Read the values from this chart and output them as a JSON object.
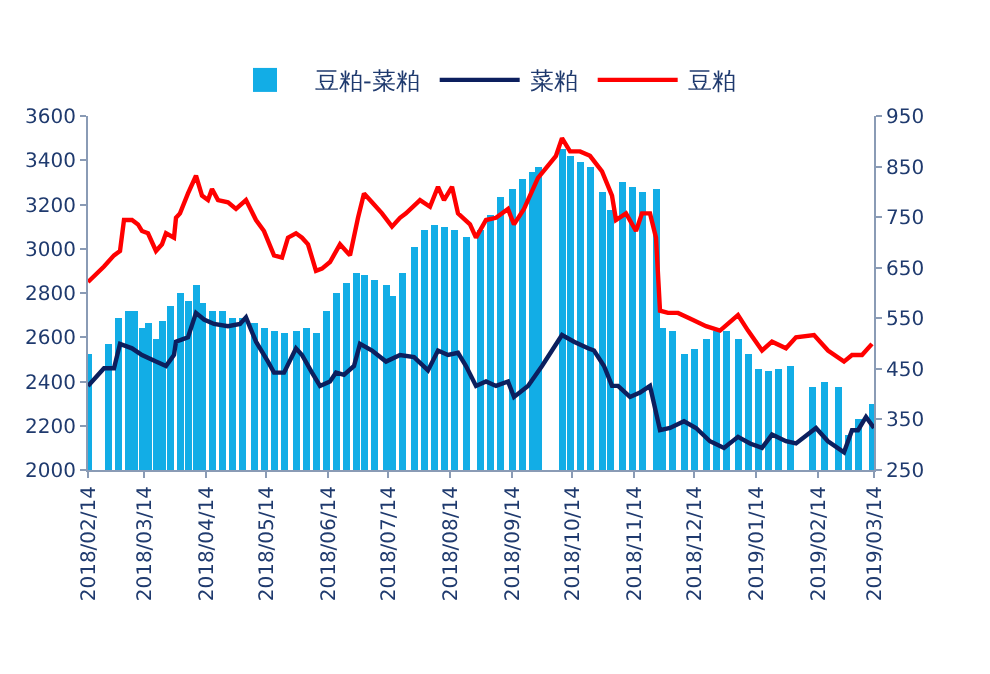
{
  "chart_data": {
    "type": "line",
    "legend": "top",
    "grid": false,
    "marker": "none",
    "line_style": "solid",
    "xlim": [
      "2018-02-14",
      "2019-03-14"
    ],
    "xticks": [
      {
        "value": "2018-02-14",
        "label": "2018/02/14"
      },
      {
        "value": "2018-03-14",
        "label": "2018/03/14"
      },
      {
        "value": "2018-04-14",
        "label": "2018/04/14"
      },
      {
        "value": "2018-05-14",
        "label": "2018/05/14"
      },
      {
        "value": "2018-06-14",
        "label": "2018/06/14"
      },
      {
        "value": "2018-07-14",
        "label": "2018/07/14"
      },
      {
        "value": "2018-08-14",
        "label": "2018/08/14"
      },
      {
        "value": "2018-09-14",
        "label": "2018/09/14"
      },
      {
        "value": "2018-10-14",
        "label": "2018/10/14"
      },
      {
        "value": "2018-11-14",
        "label": "2018/11/14"
      },
      {
        "value": "2018-12-14",
        "label": "2018/12/14"
      },
      {
        "value": "2019-01-14",
        "label": "2019/01/14"
      },
      {
        "value": "2019-02-14",
        "label": "2019/02/14"
      },
      {
        "value": "2019-03-14",
        "label": "2019/03/14"
      }
    ],
    "ylim": [
      2000,
      3600
    ],
    "yticks": [
      2000,
      2200,
      2400,
      2600,
      2800,
      3000,
      3200,
      3400,
      3600
    ],
    "y2lim": [
      250,
      950
    ],
    "y2ticks": [
      250,
      350,
      450,
      550,
      650,
      750,
      850,
      950
    ],
    "series": [
      {
        "name": "豆粕-菜粕",
        "type": "bar",
        "axis": "y2",
        "color": "#12ade6",
        "x": [
          "2018-02-14",
          "2018-02-24",
          "2018-03-01",
          "2018-03-06",
          "2018-03-09",
          "2018-03-13",
          "2018-03-16",
          "2018-03-20",
          "2018-03-23",
          "2018-03-27",
          "2018-04-01",
          "2018-04-05",
          "2018-04-09",
          "2018-04-12",
          "2018-04-17",
          "2018-04-22",
          "2018-04-27",
          "2018-05-02",
          "2018-05-08",
          "2018-05-13",
          "2018-05-18",
          "2018-05-23",
          "2018-05-29",
          "2018-06-03",
          "2018-06-08",
          "2018-06-13",
          "2018-06-18",
          "2018-06-23",
          "2018-06-28",
          "2018-07-02",
          "2018-07-07",
          "2018-07-13",
          "2018-07-16",
          "2018-07-21",
          "2018-07-27",
          "2018-08-01",
          "2018-08-06",
          "2018-08-11",
          "2018-08-16",
          "2018-08-22",
          "2018-08-29",
          "2018-09-03",
          "2018-09-08",
          "2018-09-14",
          "2018-09-19",
          "2018-09-24",
          "2018-09-27",
          "2018-10-09",
          "2018-10-13",
          "2018-10-18",
          "2018-10-23",
          "2018-10-29",
          "2018-11-02",
          "2018-11-08",
          "2018-11-13",
          "2018-11-18",
          "2018-11-25",
          "2018-11-28",
          "2018-12-03",
          "2018-12-09",
          "2018-12-14",
          "2018-12-20",
          "2018-12-25",
          "2018-12-30",
          "2019-01-05",
          "2019-01-10",
          "2019-01-15",
          "2019-01-20",
          "2019-01-25",
          "2019-01-31",
          "2019-02-11",
          "2019-02-17",
          "2019-02-24",
          "2019-03-01",
          "2019-03-06",
          "2019-03-13"
        ],
        "values": [
          480,
          500,
          550,
          565,
          565,
          530,
          540,
          510,
          545,
          575,
          600,
          585,
          615,
          580,
          565,
          565,
          550,
          550,
          540,
          530,
          525,
          520,
          525,
          530,
          520,
          565,
          600,
          620,
          640,
          635,
          625,
          615,
          595,
          640,
          690,
          725,
          735,
          730,
          725,
          710,
          725,
          755,
          790,
          805,
          825,
          840,
          850,
          885,
          870,
          860,
          850,
          800,
          765,
          820,
          810,
          800,
          805,
          530,
          525,
          480,
          490,
          510,
          525,
          525,
          510,
          480,
          450,
          445,
          450,
          455,
          415,
          425,
          415,
          320,
          350,
          380
        ]
      },
      {
        "name": "菜粕",
        "color": "#0c1f5e",
        "x": [
          "2018-02-14",
          "2018-02-22",
          "2018-02-27",
          "2018-03-02",
          "2018-03-08",
          "2018-03-13",
          "2018-03-20",
          "2018-03-25",
          "2018-03-29",
          "2018-03-30",
          "2018-04-05",
          "2018-04-09",
          "2018-04-13",
          "2018-04-18",
          "2018-04-25",
          "2018-05-01",
          "2018-05-04",
          "2018-05-09",
          "2018-05-15",
          "2018-05-18",
          "2018-05-23",
          "2018-05-29",
          "2018-06-01",
          "2018-06-06",
          "2018-06-10",
          "2018-06-15",
          "2018-06-18",
          "2018-06-22",
          "2018-06-27",
          "2018-06-30",
          "2018-07-06",
          "2018-07-13",
          "2018-07-20",
          "2018-07-27",
          "2018-08-03",
          "2018-08-08",
          "2018-08-13",
          "2018-08-18",
          "2018-08-22",
          "2018-08-27",
          "2018-09-01",
          "2018-09-06",
          "2018-09-12",
          "2018-09-15",
          "2018-09-22",
          "2018-09-29",
          "2018-10-09",
          "2018-10-15",
          "2018-10-22",
          "2018-10-25",
          "2018-10-30",
          "2018-11-03",
          "2018-11-06",
          "2018-11-12",
          "2018-11-17",
          "2018-11-22",
          "2018-11-27",
          "2018-12-02",
          "2018-12-09",
          "2018-12-15",
          "2018-12-22",
          "2018-12-29",
          "2019-01-05",
          "2019-01-11",
          "2019-01-17",
          "2019-01-22",
          "2019-01-29",
          "2019-02-03",
          "2019-02-13",
          "2019-02-19",
          "2019-02-27",
          "2019-03-03",
          "2019-03-06",
          "2019-03-10",
          "2019-03-14"
        ],
        "values": [
          2380,
          2460,
          2460,
          2570,
          2550,
          2520,
          2490,
          2470,
          2520,
          2580,
          2600,
          2710,
          2680,
          2660,
          2650,
          2660,
          2690,
          2580,
          2490,
          2440,
          2440,
          2550,
          2520,
          2440,
          2380,
          2400,
          2440,
          2430,
          2470,
          2570,
          2540,
          2490,
          2520,
          2510,
          2450,
          2540,
          2520,
          2530,
          2470,
          2380,
          2400,
          2380,
          2400,
          2330,
          2380,
          2470,
          2610,
          2580,
          2550,
          2540,
          2470,
          2380,
          2380,
          2330,
          2350,
          2380,
          2180,
          2190,
          2220,
          2190,
          2130,
          2100,
          2150,
          2120,
          2100,
          2160,
          2130,
          2120,
          2190,
          2130,
          2080,
          2180,
          2180,
          2240,
          2190
        ]
      },
      {
        "name": "豆粕",
        "color": "#ff0000",
        "x": [
          "2018-02-14",
          "2018-02-22",
          "2018-02-27",
          "2018-03-02",
          "2018-03-04",
          "2018-03-08",
          "2018-03-11",
          "2018-03-13",
          "2018-03-16",
          "2018-03-20",
          "2018-03-23",
          "2018-03-25",
          "2018-03-29",
          "2018-03-30",
          "2018-04-01",
          "2018-04-05",
          "2018-04-09",
          "2018-04-12",
          "2018-04-15",
          "2018-04-17",
          "2018-04-20",
          "2018-04-25",
          "2018-04-29",
          "2018-05-04",
          "2018-05-09",
          "2018-05-13",
          "2018-05-18",
          "2018-05-22",
          "2018-05-25",
          "2018-05-29",
          "2018-06-01",
          "2018-06-04",
          "2018-06-08",
          "2018-06-11",
          "2018-06-15",
          "2018-06-20",
          "2018-06-25",
          "2018-06-29",
          "2018-07-02",
          "2018-07-06",
          "2018-07-11",
          "2018-07-16",
          "2018-07-20",
          "2018-07-23",
          "2018-07-30",
          "2018-08-04",
          "2018-08-08",
          "2018-08-11",
          "2018-08-15",
          "2018-08-18",
          "2018-08-24",
          "2018-08-27",
          "2018-09-01",
          "2018-09-06",
          "2018-09-12",
          "2018-09-15",
          "2018-09-20",
          "2018-09-27",
          "2018-10-06",
          "2018-10-09",
          "2018-10-13",
          "2018-10-18",
          "2018-10-23",
          "2018-10-29",
          "2018-11-03",
          "2018-11-05",
          "2018-11-10",
          "2018-11-15",
          "2018-11-18",
          "2018-11-22",
          "2018-11-25",
          "2018-11-27",
          "2018-12-01",
          "2018-12-06",
          "2018-12-13",
          "2018-12-20",
          "2018-12-27",
          "2019-01-05",
          "2019-01-10",
          "2019-01-17",
          "2019-01-22",
          "2019-01-29",
          "2019-02-03",
          "2019-02-12",
          "2019-02-19",
          "2019-02-27",
          "2019-03-03",
          "2019-03-08",
          "2019-03-13"
        ],
        "values": [
          2850,
          2920,
          2970,
          2990,
          3130,
          3130,
          3110,
          3080,
          3070,
          2990,
          3020,
          3070,
          3050,
          3140,
          3160,
          3250,
          3330,
          3240,
          3220,
          3270,
          3220,
          3210,
          3180,
          3220,
          3130,
          3080,
          2970,
          2960,
          3050,
          3070,
          3050,
          3020,
          2900,
          2910,
          2940,
          3020,
          2970,
          3140,
          3250,
          3210,
          3160,
          3100,
          3140,
          3160,
          3220,
          3190,
          3280,
          3220,
          3280,
          3160,
          3110,
          3050,
          3130,
          3140,
          3180,
          3110,
          3180,
          3320,
          3420,
          3500,
          3440,
          3440,
          3420,
          3350,
          3240,
          3130,
          3160,
          3080,
          3160,
          3160,
          3050,
          2720,
          2710,
          2710,
          2680,
          2650,
          2630,
          2700,
          2630,
          2540,
          2580,
          2550,
          2600,
          2610,
          2540,
          2490,
          2520,
          2520,
          2570
        ]
      }
    ]
  }
}
